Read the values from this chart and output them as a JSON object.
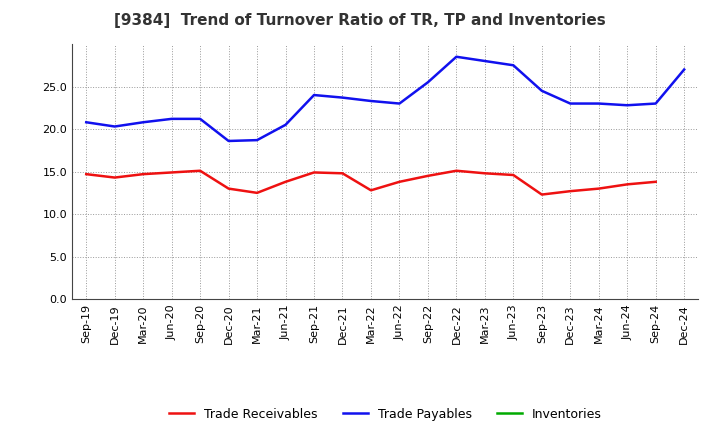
{
  "title": "[9384]  Trend of Turnover Ratio of TR, TP and Inventories",
  "x_labels": [
    "Sep-19",
    "Dec-19",
    "Mar-20",
    "Jun-20",
    "Sep-20",
    "Dec-20",
    "Mar-21",
    "Jun-21",
    "Sep-21",
    "Dec-21",
    "Mar-22",
    "Jun-22",
    "Sep-22",
    "Dec-22",
    "Mar-23",
    "Jun-23",
    "Sep-23",
    "Dec-23",
    "Mar-24",
    "Jun-24",
    "Sep-24",
    "Dec-24"
  ],
  "trade_receivables": [
    14.7,
    14.3,
    14.7,
    14.9,
    15.1,
    13.0,
    12.5,
    13.8,
    14.9,
    14.8,
    12.8,
    13.8,
    14.5,
    15.1,
    14.8,
    14.6,
    12.3,
    12.7,
    13.0,
    13.5,
    13.8,
    null
  ],
  "trade_payables": [
    20.8,
    20.3,
    20.8,
    21.2,
    21.2,
    18.6,
    18.7,
    20.5,
    24.0,
    23.7,
    23.3,
    23.0,
    25.5,
    28.5,
    28.0,
    27.5,
    24.5,
    23.0,
    23.0,
    22.8,
    23.0,
    27.0
  ],
  "inventories": [
    null,
    null,
    null,
    null,
    null,
    null,
    null,
    null,
    null,
    null,
    null,
    null,
    null,
    null,
    null,
    null,
    null,
    null,
    null,
    null,
    null,
    null
  ],
  "ylim": [
    0,
    30
  ],
  "yticks": [
    0.0,
    5.0,
    10.0,
    15.0,
    20.0,
    25.0
  ],
  "line_colors": {
    "trade_receivables": "#EE1111",
    "trade_payables": "#1111EE",
    "inventories": "#00AA00"
  },
  "legend_labels": [
    "Trade Receivables",
    "Trade Payables",
    "Inventories"
  ],
  "background_color": "#FFFFFF",
  "grid_color": "#999999",
  "title_fontsize": 11,
  "axis_fontsize": 8,
  "legend_fontsize": 9
}
